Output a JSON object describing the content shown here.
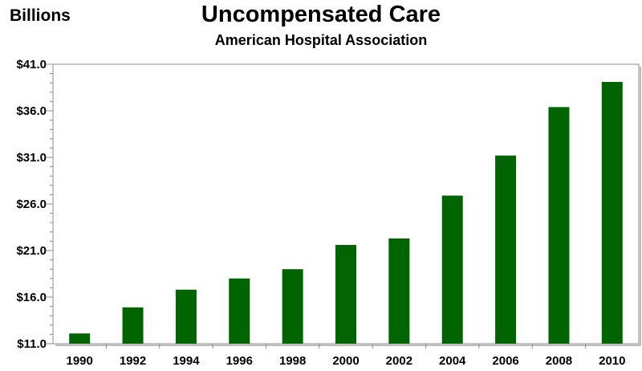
{
  "chart_data": {
    "type": "bar",
    "title": "Uncompensated Care",
    "subtitle": "American Hospital Association",
    "units_label": "Billions",
    "xlabel": "",
    "ylabel": "",
    "categories": [
      "1990",
      "1992",
      "1994",
      "1996",
      "1998",
      "2000",
      "2002",
      "2004",
      "2006",
      "2008",
      "2010"
    ],
    "values": [
      12.1,
      14.9,
      16.8,
      18.0,
      19.0,
      21.6,
      22.3,
      26.9,
      31.2,
      36.4,
      39.1
    ],
    "ylim": [
      11.0,
      41.0
    ],
    "yticks": [
      11.0,
      16.0,
      21.0,
      26.0,
      31.0,
      36.0,
      41.0
    ],
    "ytick_labels": [
      "$11.0",
      "$16.0",
      "$21.0",
      "$26.0",
      "$31.0",
      "$36.0",
      "$41.0"
    ],
    "bar_color": "#006400",
    "grid": false,
    "legend": "none"
  }
}
